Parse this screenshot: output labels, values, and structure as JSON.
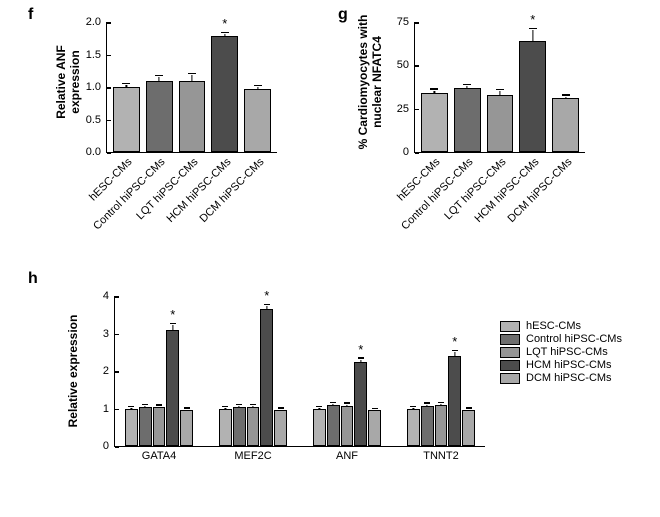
{
  "categories": [
    "hESC-CMs",
    "Control hiPSC-CMs",
    "LQT hiPSC-CMs",
    "HCM hiPSC-CMs",
    "DCM hiPSC-CMs"
  ],
  "colors": {
    "hESC-CMs": "#b2b2b2",
    "Control hiPSC-CMs": "#6d6d6d",
    "LQT hiPSC-CMs": "#969696",
    "HCM hiPSC-CMs": "#4c4c4c",
    "DCM hiPSC-CMs": "#a8a8a8"
  },
  "panel_f": {
    "label": "f",
    "y_title": "Relative ANF expression",
    "ymax": 2.0,
    "yticks": [
      0.0,
      0.5,
      1.0,
      1.5,
      2.0
    ],
    "values": [
      1.0,
      1.1,
      1.1,
      1.78,
      0.97
    ],
    "errors": [
      0.05,
      0.07,
      0.1,
      0.05,
      0.05
    ],
    "sig_index": 3
  },
  "panel_g": {
    "label": "g",
    "y_title": "% Cardiomyocytes with\nnuclear NFATC4",
    "ymax": 75,
    "yticks": [
      0,
      25,
      50,
      75
    ],
    "values": [
      34,
      37,
      33,
      64,
      31
    ],
    "errors": [
      2,
      1.5,
      2.5,
      7,
      1.5
    ],
    "sig_index": 3
  },
  "panel_h": {
    "label": "h",
    "y_title": "Relative expression",
    "ymax": 4,
    "yticks": [
      0,
      1,
      2,
      3,
      4
    ],
    "groups": [
      "GATA4",
      "MEF2C",
      "ANF",
      "TNNT2"
    ],
    "series": [
      {
        "name": "hESC-CMs",
        "values": [
          1.0,
          1.0,
          1.0,
          1.0
        ],
        "errors": [
          0.03,
          0.03,
          0.03,
          0.03
        ]
      },
      {
        "name": "Control hiPSC-CMs",
        "values": [
          1.05,
          1.05,
          1.1,
          1.08
        ],
        "errors": [
          0.05,
          0.05,
          0.05,
          0.05
        ]
      },
      {
        "name": "LQT hiPSC-CMs",
        "values": [
          1.03,
          1.05,
          1.08,
          1.1
        ],
        "errors": [
          0.05,
          0.05,
          0.05,
          0.05
        ]
      },
      {
        "name": "HCM hiPSC-CMs",
        "values": [
          3.1,
          3.65,
          2.25,
          2.4
        ],
        "errors": [
          0.15,
          0.1,
          0.08,
          0.14
        ]
      },
      {
        "name": "DCM hiPSC-CMs",
        "values": [
          0.97,
          0.97,
          0.95,
          0.97
        ],
        "errors": [
          0.03,
          0.03,
          0.04,
          0.03
        ]
      }
    ],
    "sig_series_index": 3
  }
}
